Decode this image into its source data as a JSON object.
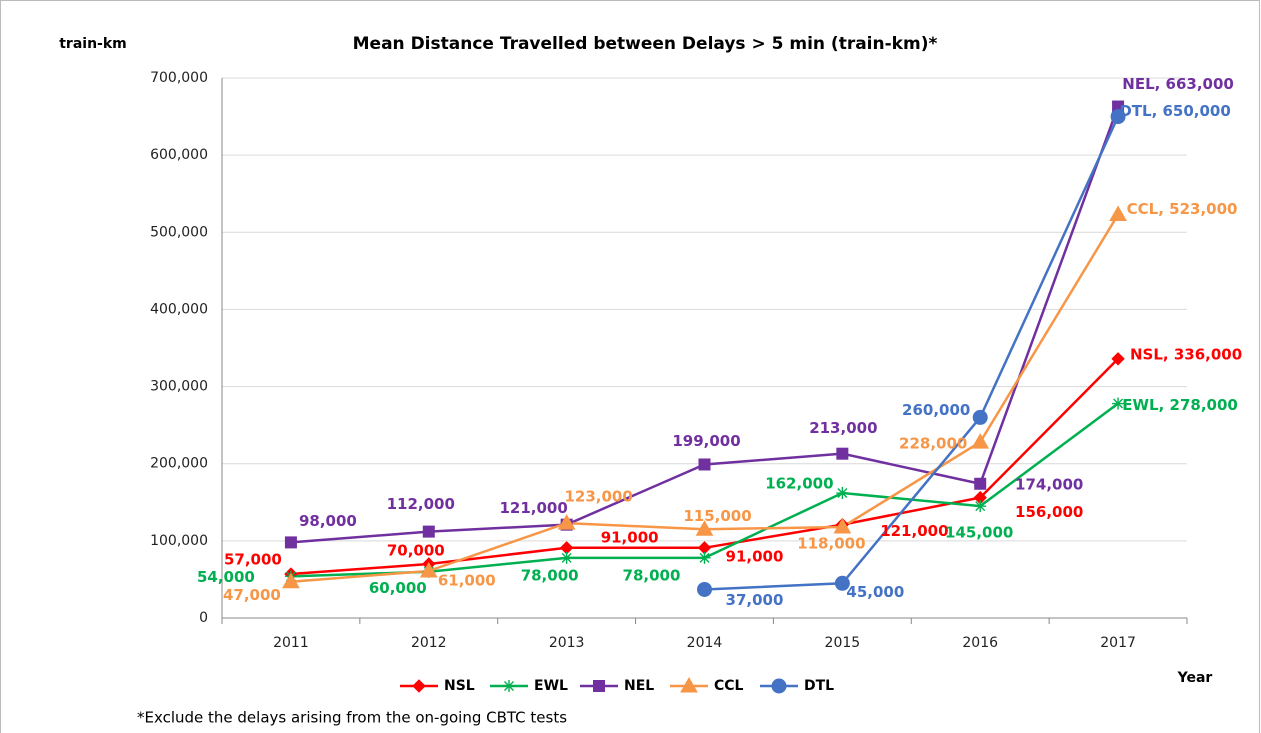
{
  "chart_data": {
    "type": "line",
    "title": "Mean Distance Travelled between Delays > 5 min (train-km)*",
    "y_label": "train-km",
    "x_label": "Year",
    "footnote": "*Exclude the delays arising from the on-going CBTC tests",
    "categories": [
      "2011",
      "2012",
      "2013",
      "2014",
      "2015",
      "2016",
      "2017"
    ],
    "ylim": [
      0,
      700000
    ],
    "yticks": [
      0,
      {
        "value": 100000,
        "label": "100,000"
      },
      {
        "value": 200000,
        "label": "200,000"
      },
      {
        "value": 300000,
        "label": "300,000"
      },
      {
        "value": 400000,
        "label": "400,000"
      },
      {
        "value": 500000,
        "label": "500,000"
      },
      {
        "value": 600000,
        "label": "600,000"
      },
      {
        "value": 700000,
        "label": "700,000"
      }
    ],
    "grid": true,
    "legend": "bottom",
    "series": [
      {
        "name": "NSL",
        "color": "#ff0000",
        "marker": "diamond",
        "values": [
          57000,
          70000,
          91000,
          91000,
          121000,
          156000,
          336000
        ],
        "value_labels": [
          "57,000",
          "70,000",
          "91,000",
          "91,000",
          "121,000",
          "156,000",
          "NSL, 336,000"
        ]
      },
      {
        "name": "EWL",
        "color": "#00b050",
        "marker": "asterisk",
        "values": [
          54000,
          60000,
          78000,
          78000,
          162000,
          145000,
          278000
        ],
        "value_labels": [
          "54,000",
          "60,000",
          "78,000",
          "78,000",
          "162,000",
          "145,000",
          "EWL, 278,000"
        ]
      },
      {
        "name": "NEL",
        "color": "#7030a0",
        "marker": "square",
        "values": [
          98000,
          112000,
          121000,
          199000,
          213000,
          174000,
          663000
        ],
        "value_labels": [
          "98,000",
          "112,000",
          "121,000",
          "199,000",
          "213,000",
          "174,000",
          "NEL, 663,000"
        ]
      },
      {
        "name": "CCL",
        "color": "#f79646",
        "marker": "triangle",
        "values": [
          47000,
          61000,
          123000,
          115000,
          118000,
          228000,
          523000
        ],
        "value_labels": [
          "47,000",
          "61,000",
          "123,000",
          "115,000",
          "118,000",
          "228,000",
          "CCL, 523,000"
        ]
      },
      {
        "name": "DTL",
        "color": "#4472c4",
        "marker": "circle",
        "values": [
          null,
          null,
          null,
          37000,
          45000,
          260000,
          650000
        ],
        "value_labels": [
          null,
          null,
          null,
          "37,000",
          "45,000",
          "260,000",
          "DTL, 650,000"
        ]
      }
    ]
  }
}
